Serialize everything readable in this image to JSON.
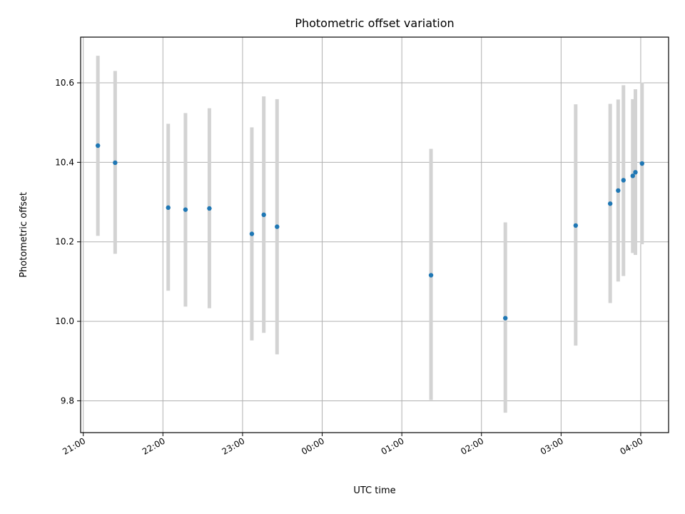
{
  "chart_data": {
    "type": "scatter",
    "title": "Photometric offset variation",
    "xlabel": "UTC time",
    "ylabel": "Photometric offset",
    "x_unit": "UTC hh:mm (times after 00:00 fall on the following day)",
    "xlim": [
      "20:58",
      "04:21"
    ],
    "ylim": [
      9.72,
      10.715
    ],
    "grid": true,
    "legend": "none",
    "x_ticks": [
      "21:00",
      "22:00",
      "23:00",
      "00:00",
      "01:00",
      "02:00",
      "03:00",
      "04:00"
    ],
    "y_ticks": [
      "9.8",
      "10.0",
      "10.2",
      "10.4",
      "10.6"
    ],
    "colors": {
      "point": "#1f77b4",
      "errorbar": "#d3d3d3",
      "grid": "#b0b0b0"
    },
    "points": [
      {
        "x": "21:11",
        "y": 10.442,
        "y_low": 10.215,
        "y_high": 10.668
      },
      {
        "x": "21:24",
        "y": 10.399,
        "y_low": 10.17,
        "y_high": 10.63
      },
      {
        "x": "22:04",
        "y": 10.286,
        "y_low": 10.077,
        "y_high": 10.497
      },
      {
        "x": "22:17",
        "y": 10.281,
        "y_low": 10.037,
        "y_high": 10.524
      },
      {
        "x": "22:35",
        "y": 10.284,
        "y_low": 10.033,
        "y_high": 10.536
      },
      {
        "x": "23:07",
        "y": 10.22,
        "y_low": 9.952,
        "y_high": 10.488
      },
      {
        "x": "23:16",
        "y": 10.268,
        "y_low": 9.971,
        "y_high": 10.566
      },
      {
        "x": "23:26",
        "y": 10.238,
        "y_low": 9.917,
        "y_high": 10.559
      },
      {
        "x": "01:22",
        "y": 10.116,
        "y_low": 9.802,
        "y_high": 10.434
      },
      {
        "x": "02:18",
        "y": 10.008,
        "y_low": 9.77,
        "y_high": 10.249
      },
      {
        "x": "03:11",
        "y": 10.241,
        "y_low": 9.939,
        "y_high": 10.546
      },
      {
        "x": "03:37",
        "y": 10.296,
        "y_low": 10.046,
        "y_high": 10.547
      },
      {
        "x": "03:43",
        "y": 10.329,
        "y_low": 10.1,
        "y_high": 10.558
      },
      {
        "x": "03:47",
        "y": 10.355,
        "y_low": 10.114,
        "y_high": 10.594
      },
      {
        "x": "03:54",
        "y": 10.366,
        "y_low": 10.172,
        "y_high": 10.559
      },
      {
        "x": "03:56",
        "y": 10.375,
        "y_low": 10.167,
        "y_high": 10.584
      },
      {
        "x": "04:01",
        "y": 10.397,
        "y_low": 10.194,
        "y_high": 10.601
      }
    ]
  }
}
